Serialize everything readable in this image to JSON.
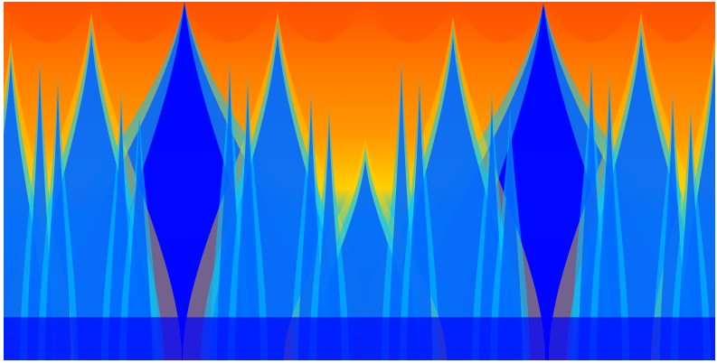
{
  "image": {
    "subject": "",
    "palette": {
      "top": "#ff5200",
      "orange": "#ff8c00",
      "yellow": "#ffd400",
      "cyan": "#00c8ff",
      "mid_blue": "#0060ff",
      "bottom": "#0000ff",
      "frame": "#ffffff"
    }
  }
}
